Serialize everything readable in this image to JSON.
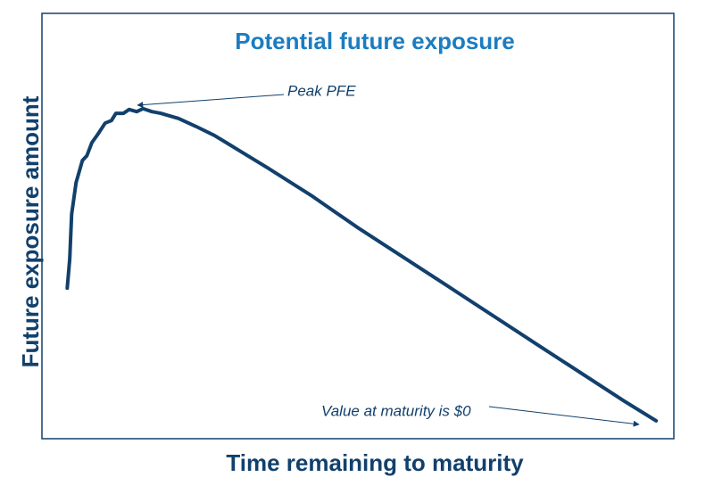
{
  "chart_data": {
    "type": "line",
    "title": "Potential future exposure",
    "x_label": "Time remaining to maturity",
    "y_label": "Future exposure amount",
    "xlim": [
      0,
      100
    ],
    "ylim": [
      0,
      100
    ],
    "x": [
      4.0,
      4.4,
      4.7,
      5.4,
      6.4,
      7.1,
      7.9,
      8.9,
      10.0,
      11.0,
      11.7,
      12.9,
      13.8,
      15.0,
      16.0,
      17.4,
      18.8,
      21.6,
      24.4,
      27.3,
      31.5,
      35.7,
      42.8,
      49.9,
      64.0,
      78.1,
      92.2,
      97.2
    ],
    "series": [
      {
        "color": "#12406c",
        "values": [
          35.4,
          42.3,
          52.8,
          60.2,
          65.4,
          66.5,
          69.6,
          71.7,
          74.2,
          74.8,
          76.5,
          76.5,
          77.4,
          76.9,
          77.6,
          76.9,
          76.5,
          75.3,
          73.4,
          71.3,
          67.5,
          63.7,
          57.0,
          49.7,
          36.1,
          22.4,
          8.8,
          4.2
        ]
      }
    ],
    "annotations": [
      {
        "text": "Peak PFE"
      },
      {
        "text": "Value at maturity is $0"
      }
    ],
    "title_color": "#1c7cc0",
    "label_color": "#12406c"
  }
}
